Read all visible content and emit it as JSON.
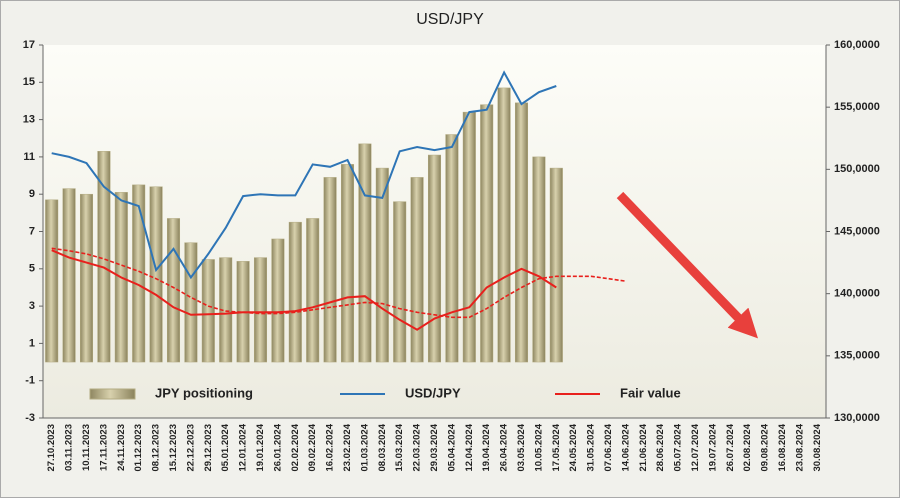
{
  "chart_data": {
    "type": "combo",
    "title": "USD/JPY",
    "categories": [
      "27.10.2023",
      "03.11.2023",
      "10.11.2023",
      "17.11.2023",
      "24.11.2023",
      "01.12.2023",
      "08.12.2023",
      "15.12.2023",
      "22.12.2023",
      "29.12.2023",
      "05.01.2024",
      "12.01.2024",
      "19.01.2024",
      "26.01.2024",
      "02.02.2024",
      "09.02.2024",
      "16.02.2024",
      "23.02.2024",
      "01.03.2024",
      "08.03.2024",
      "15.03.2024",
      "22.03.2024",
      "29.03.2024",
      "05.04.2024",
      "12.04.2024",
      "19.04.2024",
      "26.04.2024",
      "03.05.2024",
      "10.05.2024",
      "17.05.2024",
      "24.05.2024",
      "31.05.2024",
      "07.06.2024",
      "14.06.2024",
      "21.06.2024",
      "28.06.2024",
      "05.07.2024",
      "12.07.2024",
      "19.07.2024",
      "26.07.2024",
      "02.08.2024",
      "09.08.2024",
      "16.08.2024",
      "23.08.2024",
      "30.08.2024"
    ],
    "series": [
      {
        "name": "JPY positioning",
        "type": "bar",
        "color": "#b3ab82",
        "values": [
          8.7,
          9.3,
          9.0,
          11.3,
          9.1,
          9.5,
          9.4,
          7.7,
          6.4,
          5.5,
          5.6,
          5.4,
          5.6,
          6.6,
          7.5,
          7.7,
          9.9,
          10.6,
          11.7,
          10.4,
          8.6,
          9.9,
          11.1,
          12.2,
          13.4,
          13.8,
          14.7,
          13.9,
          11.0,
          10.4,
          null,
          null,
          null,
          null,
          null,
          null,
          null,
          null,
          null,
          null,
          null,
          null,
          null,
          null,
          null
        ]
      },
      {
        "name": "USD/JPY",
        "type": "line",
        "axis": "y2",
        "color": "#2e75b6",
        "values": [
          151300,
          151000,
          150500,
          148600,
          147500,
          147050,
          141900,
          143600,
          141300,
          143200,
          145300,
          147850,
          148000,
          147900,
          147900,
          150400,
          150200,
          150750,
          147900,
          147700,
          151450,
          151800,
          151550,
          151800,
          154600,
          154800,
          157800,
          155250,
          156200,
          156700,
          null,
          null,
          null,
          null,
          null,
          null,
          null,
          null,
          null,
          null,
          null,
          null,
          null,
          null,
          null
        ]
      },
      {
        "name": "Fair value",
        "type": "line",
        "axis": "y2",
        "color": "#e8201c",
        "values": [
          143500,
          142900,
          142500,
          142100,
          141300,
          140700,
          139900,
          138900,
          138300,
          138350,
          138400,
          138500,
          138500,
          138500,
          138600,
          138900,
          139300,
          139700,
          139800,
          138800,
          137900,
          137100,
          138000,
          138500,
          138900,
          140500,
          141300,
          142000,
          141400,
          140500,
          null,
          null,
          null,
          null,
          null,
          null,
          null,
          null,
          null,
          null,
          null,
          null,
          null,
          null,
          null
        ]
      },
      {
        "type": "line",
        "axis": "y2",
        "dashed": true,
        "color": "#e8201c",
        "values": [
          143650,
          143450,
          143200,
          142800,
          142300,
          141800,
          141200,
          140500,
          139700,
          139000,
          138600,
          138500,
          138400,
          138400,
          138500,
          138700,
          138900,
          139100,
          139300,
          139200,
          138800,
          138500,
          138300,
          138100,
          138100,
          138800,
          139700,
          140500,
          141200,
          141400,
          141400,
          141400,
          141200,
          141000,
          null,
          null,
          null,
          null,
          null,
          null,
          null,
          null,
          null,
          null,
          null
        ]
      }
    ],
    "ylim": [
      -3,
      17
    ],
    "yticks": [
      -3,
      -1,
      1,
      3,
      5,
      7,
      9,
      11,
      13,
      15,
      17
    ],
    "y2lim": [
      130000,
      160000
    ],
    "y2ticks": [
      {
        "value": 130000,
        "label": "130,0000"
      },
      {
        "value": 135000,
        "label": "135,0000"
      },
      {
        "value": 140000,
        "label": "140,0000"
      },
      {
        "value": 145000,
        "label": "145,0000"
      },
      {
        "value": 150000,
        "label": "150,0000"
      },
      {
        "value": 155000,
        "label": "155,0000"
      },
      {
        "value": 160000,
        "label": "160,0000"
      }
    ],
    "grid": false
  }
}
